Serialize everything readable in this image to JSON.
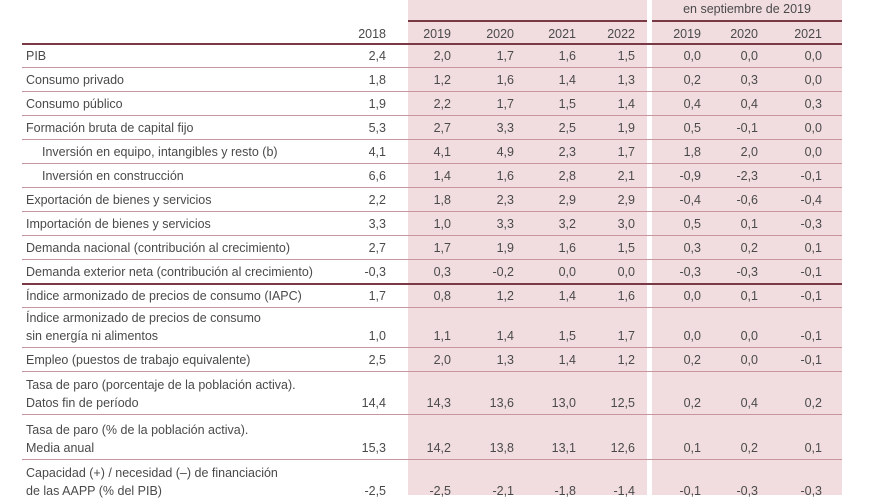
{
  "header": {
    "revision_caption": "en septiembre de 2019",
    "columns": [
      "2018",
      "2019",
      "2020",
      "2021",
      "2022",
      "2019",
      "2020",
      "2021"
    ]
  },
  "rows": [
    {
      "label": [
        "PIB"
      ],
      "indent": false,
      "values": [
        "2,4",
        "2,0",
        "1,7",
        "1,6",
        "1,5",
        "0,0",
        "0,0",
        "0,0"
      ]
    },
    {
      "label": [
        "Consumo privado"
      ],
      "indent": false,
      "values": [
        "1,8",
        "1,2",
        "1,6",
        "1,4",
        "1,3",
        "0,2",
        "0,3",
        "0,0"
      ]
    },
    {
      "label": [
        "Consumo público"
      ],
      "indent": false,
      "values": [
        "1,9",
        "2,2",
        "1,7",
        "1,5",
        "1,4",
        "0,4",
        "0,4",
        "0,3"
      ]
    },
    {
      "label": [
        "Formación bruta de capital fijo"
      ],
      "indent": false,
      "values": [
        "5,3",
        "2,7",
        "3,3",
        "2,5",
        "1,9",
        "0,5",
        "-0,1",
        "0,0"
      ]
    },
    {
      "label": [
        "Inversión en equipo, intangibles y resto (b)"
      ],
      "indent": true,
      "values": [
        "4,1",
        "4,1",
        "4,9",
        "2,3",
        "1,7",
        "1,8",
        "2,0",
        "0,0"
      ]
    },
    {
      "label": [
        "Inversión en construcción"
      ],
      "indent": true,
      "values": [
        "6,6",
        "1,4",
        "1,6",
        "2,8",
        "2,1",
        "-0,9",
        "-2,3",
        "-0,1"
      ]
    },
    {
      "label": [
        "Exportación de bienes y servicios"
      ],
      "indent": false,
      "values": [
        "2,2",
        "1,8",
        "2,3",
        "2,9",
        "2,9",
        "-0,4",
        "-0,6",
        "-0,4"
      ]
    },
    {
      "label": [
        "Importación de bienes y servicios"
      ],
      "indent": false,
      "values": [
        "3,3",
        "1,0",
        "3,3",
        "3,2",
        "3,0",
        "0,5",
        "0,1",
        "-0,3"
      ]
    },
    {
      "label": [
        "Demanda nacional (contribución al crecimiento)"
      ],
      "indent": false,
      "values": [
        "2,7",
        "1,7",
        "1,9",
        "1,6",
        "1,5",
        "0,3",
        "0,2",
        "0,1"
      ]
    },
    {
      "label": [
        "Demanda exterior neta (contribución al crecimiento)"
      ],
      "indent": false,
      "values": [
        "-0,3",
        "0,3",
        "-0,2",
        "0,0",
        "0,0",
        "-0,3",
        "-0,3",
        "-0,1"
      ]
    },
    {
      "label": [
        "Índice armonizado de precios de consumo (IAPC)"
      ],
      "indent": false,
      "values": [
        "1,7",
        "0,8",
        "1,2",
        "1,4",
        "1,6",
        "0,0",
        "0,1",
        "-0,1"
      ]
    },
    {
      "label": [
        "Índice armonizado de precios de consumo",
        "sin energía ni alimentos"
      ],
      "indent": false,
      "values": [
        "1,0",
        "1,1",
        "1,4",
        "1,5",
        "1,7",
        "0,0",
        "0,0",
        "-0,1"
      ]
    },
    {
      "label": [
        "Empleo (puestos de trabajo equivalente)"
      ],
      "indent": false,
      "values": [
        "2,5",
        "2,0",
        "1,3",
        "1,4",
        "1,2",
        "0,2",
        "0,0",
        "-0,1"
      ]
    },
    {
      "label": [
        "Tasa de paro (porcentaje de la población activa).",
        "Datos fin de período"
      ],
      "indent": false,
      "values": [
        "14,4",
        "14,3",
        "13,6",
        "13,0",
        "12,5",
        "0,2",
        "0,4",
        "0,2"
      ]
    },
    {
      "label": [
        "Tasa de paro (% de la población activa).",
        "Media anual"
      ],
      "indent": false,
      "values": [
        "15,3",
        "14,2",
        "13,8",
        "13,1",
        "12,6",
        "0,1",
        "0,2",
        "0,1"
      ]
    },
    {
      "label": [
        "Capacidad (+) / necesidad (–) de financiación",
        "de las AAPP (% del PIB)"
      ],
      "indent": false,
      "values": [
        "-2,5",
        "-2,5",
        "-2,1",
        "-1,8",
        "-1,4",
        "-0,1",
        "-0,3",
        "-0,3"
      ]
    }
  ]
}
